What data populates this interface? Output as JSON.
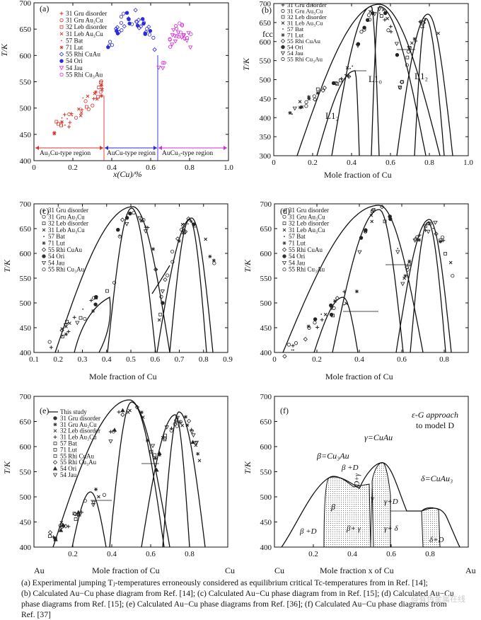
{
  "caption": {
    "line1": "(a) Experimental jumping Tⱼ-temperatures erroneously considered as equilibrium critical Tc-temperatures from in Ref. [14];",
    "line2": "(b) Calculated Au−Cu phase diagram from Ref. [14]; (c) Calculated Au−Cu phase diagram from in Ref. [15]; (d) Calculated Au−Cu",
    "line3": "phase diagrams from Ref. [15]; (e) Calculated Au−Cu phase diagrams from Ref. [36]; (f) Calculated Au−Cu phase diagrams from",
    "line4": "Ref. [37]"
  },
  "watermark": "@有色金属在线",
  "panels": {
    "a": {
      "tag": "(a)",
      "ylabel": "T/K",
      "xlabel": "x(Cu)/%",
      "xticks": [
        "0",
        "0.2",
        "0.4",
        "0.6",
        "0.8",
        "1.0"
      ],
      "yticks": [
        "400",
        "450",
        "500",
        "550",
        "600",
        "650",
        "700"
      ],
      "legend": [
        "31 Gru disorder",
        "31 Gru Au₃Cu",
        "32 Leb disorder",
        "31 Leb Au₃Cu",
        "57 Bat",
        "71 Lut",
        "55 Rhi CuAu",
        "54 Ori",
        "54 Jau",
        "55 Rhi Cu₃Au"
      ],
      "regions": [
        "Au₃Cu-type region",
        "AuCu-type region",
        "AuCu₃-type region"
      ],
      "colors": {
        "left": "#d9342b",
        "mid": "#2b2bd9",
        "right": "#d92bd9"
      }
    },
    "b": {
      "tag": "(b)",
      "ylabel": "T/K",
      "xlabel": "Mole fraction of Cu",
      "xticks": [
        "0",
        "0.2",
        "0.4",
        "0.6",
        "0.8",
        "1.0"
      ],
      "yticks": [
        "300",
        "350",
        "400",
        "450",
        "500",
        "550",
        "600",
        "650",
        "700"
      ],
      "legend": [
        "31 Gru disorder",
        "31 Gru Au₃Cu",
        "32 Leb disorder",
        "31 Leb Au₃Cu",
        "57 Bat",
        "71 Lut",
        "55 Rhi CuAu",
        "54 Ori",
        "54 Jau",
        "55 Rhi Cu₃Au"
      ],
      "labels": {
        "fcc": "fcc",
        "l10": "L1₀",
        "l12a": "L1₂",
        "l12b": "L1₂"
      }
    },
    "c": {
      "tag": "(c)",
      "ylabel": "T/K",
      "xlabel": "Mole fraction of Cu",
      "xticks": [
        "0.1",
        "0.2",
        "0.3",
        "0.4",
        "0.5",
        "0.6",
        "0.7",
        "0.8",
        "0.9"
      ],
      "yticks": [
        "400",
        "450",
        "500",
        "550",
        "600",
        "650",
        "700"
      ],
      "legend": [
        "31 Gru disorder",
        "31 Gru Au₃Cu",
        "32 Leb disorder",
        "31 Leb Au₃Cu",
        "57 Bat",
        "71 Lut",
        "55 Rhi CuAu",
        "54 Ori",
        "54 Jau",
        "55 Rhi Cu₃Au"
      ]
    },
    "d": {
      "tag": "(d)",
      "ylabel": "T/K",
      "xlabel": "Mole fraction of Cu",
      "xticks": [
        "0",
        "0.2",
        "0.4",
        "0.6",
        "0.8"
      ],
      "yticks": [
        "400",
        "450",
        "500",
        "550",
        "600",
        "650",
        "700"
      ],
      "legend": [
        "31 Gru disorder",
        "31 Gru Au₃Cu",
        "32 Leb disorder",
        "31 Leb Au₃Cu",
        "57 Bat",
        "71 Lut",
        "55 Rhi CuAu",
        "54 Ori",
        "54 Jau",
        "55 Rhi Cu₃Au"
      ]
    },
    "e": {
      "tag": "(e)",
      "ylabel": "T/K",
      "xlabel": "Mole fraction of Cu",
      "xend_left": "Au",
      "xend_right": "Cu",
      "xticks": [
        "0.2",
        "0.4",
        "0.6",
        "0.8"
      ],
      "yticks": [
        "400",
        "450",
        "500",
        "550",
        "600",
        "650",
        "700"
      ],
      "legend": [
        "This study",
        "31 Gru disorder",
        "31 Gru Au₃Cu",
        "32 Leb disorder",
        "31 Leb Au₃Cu",
        "57 Bat",
        "71 Lut",
        "55 Rhi CuAu",
        "55 Rhi Cu₃Au",
        "54 Ori",
        "54 Jau"
      ]
    },
    "f": {
      "tag": "(f)",
      "ylabel": "T/K",
      "xlabel": "Mole fraction x of Cu",
      "xend_left": "Cu",
      "xend_right": "Au",
      "xticks": [
        "0.2",
        "0.4",
        "0.6",
        "0.8"
      ],
      "yticks": [
        "400",
        "450",
        "500",
        "550",
        "600",
        "650",
        "700"
      ],
      "approach1": "ε-G approach",
      "approach2": "to model D",
      "labels": {
        "beta": "β=Cu₃Au",
        "gamma": "γ=CuAu",
        "delta": "δ=CuAu₃",
        "betaD": "β +D",
        "beta_in": "β",
        "gamma_in": "γ",
        "Dgamma": "D+γ",
        "gammaD": "γ+D",
        "betaD_left": "β +D",
        "betagamma": "β+ γ",
        "gammadelta": "γ+ δ",
        "deltaD": "δ+D"
      }
    }
  }
}
